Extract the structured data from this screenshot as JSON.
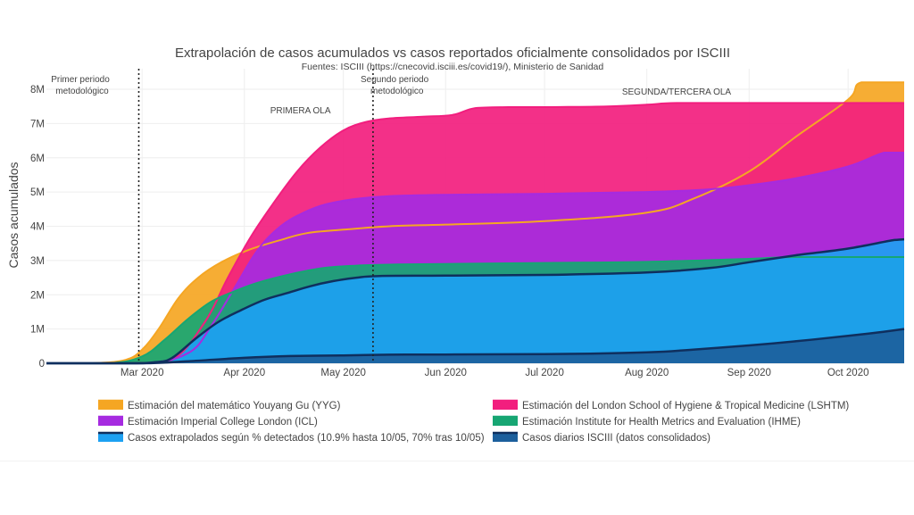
{
  "chart_data": {
    "type": "area",
    "title": "Extrapolación de casos acumulados vs casos reportados oficialmente consolidados por ISCIII",
    "subtitle": "Fuentes: ISCIII (https://cnecovid.isciii.es/covid19/), Ministerio de Sanidad",
    "xlabel": "",
    "ylabel": "Casos acumulados",
    "x_range": [
      "2020-02-01",
      "2020-10-18"
    ],
    "ylim": [
      0,
      8600000
    ],
    "y_ticks": [
      0,
      1000000,
      2000000,
      3000000,
      4000000,
      5000000,
      6000000,
      7000000,
      8000000
    ],
    "y_tick_labels": [
      "0",
      "1M",
      "2M",
      "3M",
      "4M",
      "5M",
      "6M",
      "7M",
      "8M"
    ],
    "x_ticks": [
      "2020-03-01",
      "2020-04-01",
      "2020-05-01",
      "2020-06-01",
      "2020-07-01",
      "2020-08-01",
      "2020-09-01",
      "2020-10-01"
    ],
    "x_tick_labels": [
      "Mar 2020",
      "Apr 2020",
      "May 2020",
      "Jun 2020",
      "Jul 2020",
      "Aug 2020",
      "Sep 2020",
      "Oct 2020"
    ],
    "grid": true,
    "legend_position": "bottom",
    "vertical_lines": [
      {
        "date": "2020-02-29",
        "label_lines": [
          "Primer periodo",
          "metodológico"
        ]
      },
      {
        "date": "2020-05-10",
        "label_lines": [
          "Segundo periodo",
          "metodológico"
        ]
      }
    ],
    "annotations": [
      {
        "date": "2020-04-18",
        "y": 7400000,
        "text": "PRIMERA OLA"
      },
      {
        "date": "2020-08-10",
        "y": 7950000,
        "text": "SEGUNDA/TERCERA OLA"
      }
    ],
    "series": [
      {
        "name": "Estimación del matemático Youyang Gu (YYG)",
        "color": "#f5a623",
        "points": [
          [
            "2020-02-01",
            0
          ],
          [
            "2020-02-15",
            0
          ],
          [
            "2020-02-25",
            100000
          ],
          [
            "2020-03-01",
            400000
          ],
          [
            "2020-03-06",
            1000000
          ],
          [
            "2020-03-12",
            1900000
          ],
          [
            "2020-03-18",
            2500000
          ],
          [
            "2020-03-25",
            2950000
          ],
          [
            "2020-04-02",
            3300000
          ],
          [
            "2020-04-12",
            3600000
          ],
          [
            "2020-04-20",
            3800000
          ],
          [
            "2020-05-01",
            3900000
          ],
          [
            "2020-05-15",
            4000000
          ],
          [
            "2020-06-01",
            4050000
          ],
          [
            "2020-07-01",
            4150000
          ],
          [
            "2020-08-01",
            4400000
          ],
          [
            "2020-08-15",
            4800000
          ],
          [
            "2020-09-01",
            5600000
          ],
          [
            "2020-09-15",
            6600000
          ],
          [
            "2020-10-01",
            7700000
          ],
          [
            "2020-10-05",
            8200000
          ],
          [
            "2020-10-18",
            8200000
          ]
        ]
      },
      {
        "name": "Estimación del London School of Hygiene & Tropical Medicine (LSHTM)",
        "color": "#f21e7e",
        "points": [
          [
            "2020-02-01",
            0
          ],
          [
            "2020-02-25",
            0
          ],
          [
            "2020-03-10",
            100000
          ],
          [
            "2020-03-20",
            1200000
          ],
          [
            "2020-03-27",
            2500000
          ],
          [
            "2020-04-03",
            3700000
          ],
          [
            "2020-04-10",
            4700000
          ],
          [
            "2020-04-17",
            5600000
          ],
          [
            "2020-04-24",
            6300000
          ],
          [
            "2020-05-01",
            6800000
          ],
          [
            "2020-05-08",
            7050000
          ],
          [
            "2020-05-15",
            7150000
          ],
          [
            "2020-05-25",
            7200000
          ],
          [
            "2020-06-03",
            7250000
          ],
          [
            "2020-06-10",
            7450000
          ],
          [
            "2020-06-20",
            7480000
          ],
          [
            "2020-07-01",
            7480000
          ],
          [
            "2020-07-20",
            7500000
          ],
          [
            "2020-08-01",
            7550000
          ],
          [
            "2020-08-10",
            7600000
          ],
          [
            "2020-09-01",
            7600000
          ],
          [
            "2020-10-01",
            7600000
          ],
          [
            "2020-10-18",
            7600000
          ]
        ]
      },
      {
        "name": "Estimación Imperial College London (ICL)",
        "color": "#a62be0",
        "points": [
          [
            "2020-02-01",
            0
          ],
          [
            "2020-03-01",
            0
          ],
          [
            "2020-03-15",
            300000
          ],
          [
            "2020-03-22",
            1100000
          ],
          [
            "2020-03-29",
            2200000
          ],
          [
            "2020-04-05",
            3300000
          ],
          [
            "2020-04-12",
            4000000
          ],
          [
            "2020-04-19",
            4400000
          ],
          [
            "2020-04-26",
            4650000
          ],
          [
            "2020-05-05",
            4800000
          ],
          [
            "2020-05-15",
            4880000
          ],
          [
            "2020-06-01",
            4920000
          ],
          [
            "2020-07-01",
            4950000
          ],
          [
            "2020-08-01",
            5000000
          ],
          [
            "2020-08-20",
            5080000
          ],
          [
            "2020-09-01",
            5200000
          ],
          [
            "2020-09-15",
            5400000
          ],
          [
            "2020-10-01",
            5750000
          ],
          [
            "2020-10-12",
            6150000
          ],
          [
            "2020-10-18",
            6150000
          ]
        ]
      },
      {
        "name": "Estimación Institute for Health Metrics and Evaluation (IHME)",
        "color": "#17a673",
        "points": [
          [
            "2020-02-01",
            0
          ],
          [
            "2020-02-20",
            0
          ],
          [
            "2020-03-01",
            200000
          ],
          [
            "2020-03-08",
            700000
          ],
          [
            "2020-03-15",
            1300000
          ],
          [
            "2020-03-22",
            1800000
          ],
          [
            "2020-03-29",
            2100000
          ],
          [
            "2020-04-05",
            2350000
          ],
          [
            "2020-04-15",
            2600000
          ],
          [
            "2020-04-25",
            2780000
          ],
          [
            "2020-05-05",
            2850000
          ],
          [
            "2020-05-15",
            2880000
          ],
          [
            "2020-06-01",
            2900000
          ],
          [
            "2020-07-01",
            2930000
          ],
          [
            "2020-08-01",
            2960000
          ],
          [
            "2020-09-01",
            3050000
          ],
          [
            "2020-09-15",
            3100000
          ],
          [
            "2020-10-18",
            3100000
          ]
        ]
      },
      {
        "name": "Casos extrapolados según % detectados (10.9% hasta 10/05, 70% tras 10/05)",
        "color": "#1da1f2",
        "line_color": "#0f2f5e",
        "points": [
          [
            "2020-02-01",
            0
          ],
          [
            "2020-02-25",
            0
          ],
          [
            "2020-03-05",
            30000
          ],
          [
            "2020-03-10",
            150000
          ],
          [
            "2020-03-17",
            700000
          ],
          [
            "2020-03-24",
            1200000
          ],
          [
            "2020-03-31",
            1550000
          ],
          [
            "2020-04-07",
            1850000
          ],
          [
            "2020-04-14",
            2050000
          ],
          [
            "2020-04-21",
            2250000
          ],
          [
            "2020-04-28",
            2400000
          ],
          [
            "2020-05-05",
            2500000
          ],
          [
            "2020-05-12",
            2550000
          ],
          [
            "2020-06-01",
            2560000
          ],
          [
            "2020-07-01",
            2580000
          ],
          [
            "2020-08-01",
            2650000
          ],
          [
            "2020-08-20",
            2780000
          ],
          [
            "2020-09-01",
            2950000
          ],
          [
            "2020-09-15",
            3150000
          ],
          [
            "2020-10-01",
            3350000
          ],
          [
            "2020-10-15",
            3600000
          ],
          [
            "2020-10-18",
            3620000
          ]
        ]
      },
      {
        "name": "Casos diarios ISCIII (datos consolidados)",
        "color": "#1c5f9c",
        "line_color": "#0f2f5e",
        "points": [
          [
            "2020-02-01",
            0
          ],
          [
            "2020-03-01",
            0
          ],
          [
            "2020-03-15",
            60000
          ],
          [
            "2020-04-01",
            160000
          ],
          [
            "2020-04-15",
            210000
          ],
          [
            "2020-05-01",
            230000
          ],
          [
            "2020-05-15",
            250000
          ],
          [
            "2020-06-01",
            255000
          ],
          [
            "2020-07-01",
            265000
          ],
          [
            "2020-08-01",
            320000
          ],
          [
            "2020-08-15",
            400000
          ],
          [
            "2020-09-01",
            520000
          ],
          [
            "2020-09-15",
            640000
          ],
          [
            "2020-10-01",
            800000
          ],
          [
            "2020-10-10",
            900000
          ],
          [
            "2020-10-18",
            1000000
          ]
        ]
      }
    ],
    "legend_order": [
      0,
      1,
      2,
      3,
      4,
      5
    ]
  }
}
